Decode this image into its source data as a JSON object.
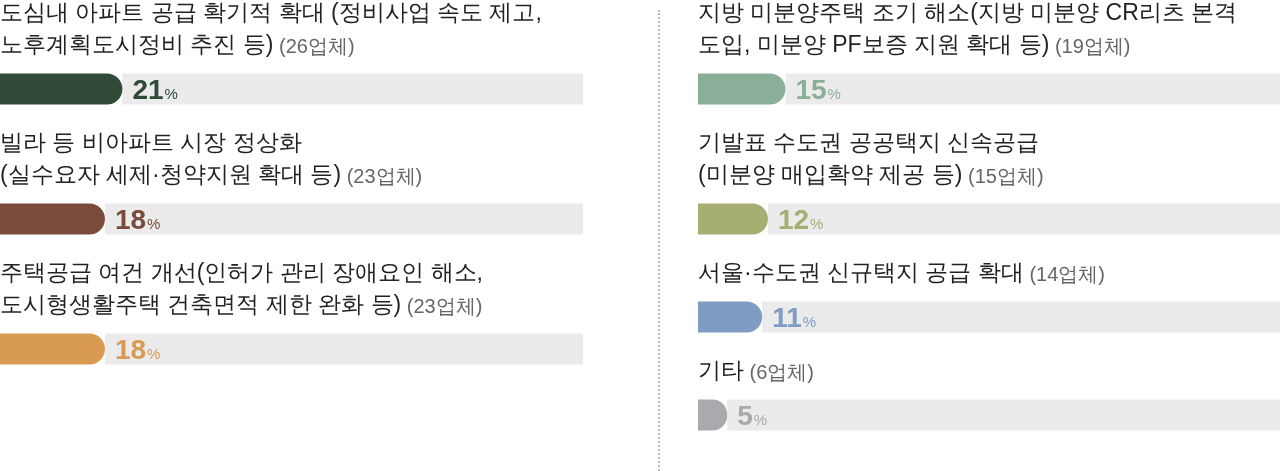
{
  "chart_data": [
    {
      "type": "bar",
      "orientation": "horizontal",
      "stacked": true,
      "categories": [
        "도심내 아파트 공급 확기적 확대 (정비사업 속도 제고,\n노후계획도시정비 추진 등) (26업체)",
        "빌라 등 비아파트 시장 정상화\n(실수요자 세제·청약지원 확대 등) (23업체)",
        "주택공급 여건 개선(인허가 관리 장애요인 해소,\n도시형생활주택 건축면적 제한 완화 등) (23업체)"
      ],
      "series": [
        {
          "colors": [
            "#2f4a37",
            "#7a4a3a",
            "#d99a52"
          ],
          "values": [
            21,
            18,
            18
          ],
          "value_labels": [
            "21%",
            "18%",
            "18%"
          ]
        },
        {
          "color": "#ebebeb",
          "values": [
            79,
            82,
            82
          ]
        }
      ],
      "xlim": [
        0,
        100
      ],
      "tick_labels": "y"
    },
    {
      "type": "bar",
      "orientation": "horizontal",
      "stacked": true,
      "categories": [
        "지방 미분양주택 조기 해소(지방 미분양 CR리츠 본격\n도입, 미분양 PF보증 지원 확대 등) (19업체)",
        "기발표 수도권 공공택지 신속공급\n(미분양 매입확약 제공 등) (15업체)",
        "서울·수도권 신규택지 공급 확대 (14업체)",
        "기타 (6업체)"
      ],
      "series": [
        {
          "colors": [
            "#8aae98",
            "#a6ae72",
            "#7f9cc4",
            "#a9aaae"
          ],
          "values": [
            15,
            12,
            11,
            5
          ],
          "value_labels": [
            "15%",
            "12%",
            "11%",
            "5%"
          ]
        },
        {
          "color": "#ebebeb",
          "values": [
            85,
            88,
            89,
            95
          ]
        }
      ],
      "xlim": [
        0,
        100
      ],
      "tick_labels": "y"
    }
  ]
}
